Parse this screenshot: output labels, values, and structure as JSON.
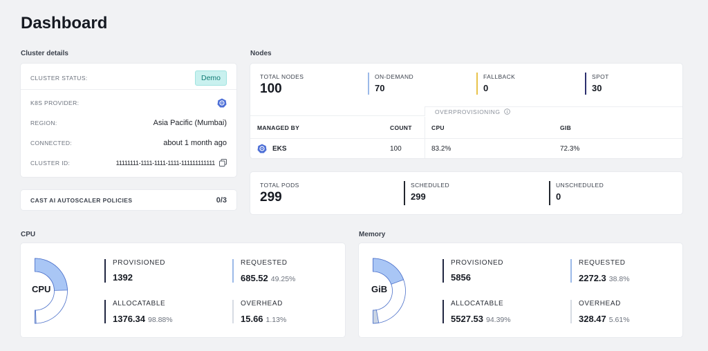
{
  "page": {
    "title": "Dashboard"
  },
  "cluster": {
    "section_title": "Cluster details",
    "rows": [
      {
        "label": "CLUSTER STATUS:",
        "value": "Demo"
      },
      {
        "label": "K8S PROVIDER:",
        "value": ""
      },
      {
        "label": "REGION:",
        "value": "Asia Pacific (Mumbai)"
      },
      {
        "label": "CONNECTED:",
        "value": "about 1 month ago"
      },
      {
        "label": "CLUSTER ID:",
        "value": "11111111-1111-1111-1111-111111111111"
      }
    ],
    "provider_icon": "kubernetes-icon",
    "copy_icon": "copy-icon"
  },
  "policies": {
    "label": "CAST AI AUTOSCALER POLICIES",
    "value": "0/3"
  },
  "nodes": {
    "section_title": "Nodes",
    "total": {
      "label": "TOTAL NODES",
      "value": "100"
    },
    "on_demand": {
      "label": "ON-DEMAND",
      "value": "70",
      "color": "#9bb9e8"
    },
    "fallback": {
      "label": "FALLBACK",
      "value": "0",
      "color": "#e8c24a"
    },
    "spot": {
      "label": "SPOT",
      "value": "30",
      "color": "#2b2f6e"
    },
    "overprovisioning_label": "OVERPROVISIONING",
    "table": {
      "headers": [
        "MANAGED BY",
        "COUNT",
        "CPU",
        "GIB"
      ],
      "rows": [
        {
          "managed_by": "EKS",
          "count": "100",
          "cpu": "83.2%",
          "gib": "72.3%"
        }
      ]
    }
  },
  "pods": {
    "total": {
      "label": "TOTAL PODS",
      "value": "299"
    },
    "scheduled": {
      "label": "SCHEDULED",
      "value": "299"
    },
    "unscheduled": {
      "label": "UNSCHEDULED",
      "value": "0"
    }
  },
  "cpu": {
    "section_title": "CPU",
    "center_label": "CPU",
    "provisioned": {
      "label": "PROVISIONED",
      "value": "1392"
    },
    "requested": {
      "label": "REQUESTED",
      "value": "685.52",
      "pct": "49.25%"
    },
    "allocatable": {
      "label": "ALLOCATABLE",
      "value": "1376.34",
      "pct": "98.88%"
    },
    "overhead": {
      "label": "OVERHEAD",
      "value": "15.66",
      "pct": "1.13%"
    },
    "requested_fraction": 0.4925,
    "overhead_fraction": 0.0113
  },
  "memory": {
    "section_title": "Memory",
    "center_label": "GiB",
    "provisioned": {
      "label": "PROVISIONED",
      "value": "5856"
    },
    "requested": {
      "label": "REQUESTED",
      "value": "2272.3",
      "pct": "38.8%"
    },
    "allocatable": {
      "label": "ALLOCATABLE",
      "value": "5527.53",
      "pct": "94.39%"
    },
    "overhead": {
      "label": "OVERHEAD",
      "value": "328.47",
      "pct": "5.61%"
    },
    "requested_fraction": 0.388,
    "overhead_fraction": 0.0561
  },
  "colors": {
    "accent_blue": "#aac8f5",
    "dark_bar": "#1f2540",
    "light_bar": "#9bb9e8"
  }
}
